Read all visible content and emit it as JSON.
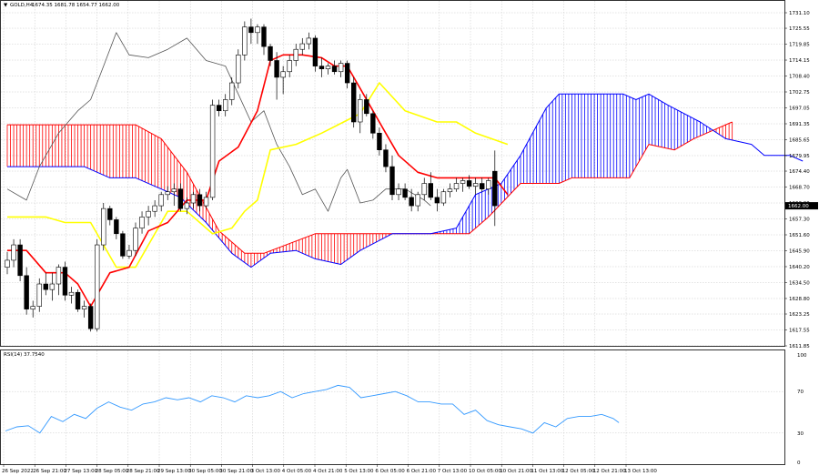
{
  "header": {
    "symbol_label": "GOLD,H4",
    "ohlc_label": "1674.35 1681.78 1654.77 1662.00",
    "rsi_label": "RSI(14) 37.7540"
  },
  "price_axis": {
    "ticks": [
      "1731.10",
      "1725.55",
      "1719.85",
      "1714.15",
      "1708.40",
      "1702.75",
      "1697.05",
      "1691.35",
      "1685.65",
      "1679.95",
      "1674.40",
      "1668.70",
      "1663.00",
      "1657.30",
      "1651.60",
      "1645.90",
      "1640.20",
      "1634.50",
      "1628.80",
      "1623.25",
      "1617.55",
      "1611.85"
    ],
    "current_price": "1662.00"
  },
  "rsi_axis": {
    "ticks": [
      "100",
      "70",
      "30",
      "0"
    ]
  },
  "time_axis": {
    "labels": [
      "26 Sep 2022",
      "26 Sep 21:00",
      "27 Sep 13:00",
      "28 Sep 05:00",
      "28 Sep 21:00",
      "29 Sep 13:00",
      "30 Sep 05:00",
      "30 Sep 21:00",
      "3 Oct 13:00",
      "4 Oct 05:00",
      "4 Oct 21:00",
      "5 Oct 13:00",
      "6 Oct 05:00",
      "6 Oct 21:00",
      "7 Oct 13:00",
      "10 Oct 05:00",
      "10 Oct 21:00",
      "11 Oct 13:00",
      "12 Oct 05:00",
      "12 Oct 21:00",
      "13 Oct 13:00"
    ]
  },
  "colors": {
    "bull": "#ffffff",
    "bear": "#000000",
    "tenkan": "#ff0000",
    "kijun": "#ffff00",
    "chikou": "#555555",
    "span_a": "#ff0000",
    "span_b": "#0000ff",
    "rsi": "#3399ff",
    "grid": "#c8c8c8"
  },
  "chart_data": [
    {
      "type": "candlestick",
      "indicator": "ichimoku",
      "ylim": [
        1611.85,
        1731.1
      ],
      "candles": [
        [
          1640.0,
          1645.5,
          1637.5,
          1642.5
        ],
        [
          1642.5,
          1650.0,
          1640.0,
          1648.0
        ],
        [
          1648.0,
          1650.0,
          1635.0,
          1637.0
        ],
        [
          1637.0,
          1640.0,
          1623.0,
          1625.0
        ],
        [
          1625.0,
          1628.0,
          1622.0,
          1626.0
        ],
        [
          1626.0,
          1636.0,
          1624.0,
          1634.0
        ],
        [
          1634.0,
          1638.0,
          1630.0,
          1632.0
        ],
        [
          1632.0,
          1638.0,
          1628.0,
          1634.0
        ],
        [
          1634.0,
          1641.0,
          1630.0,
          1640.0
        ],
        [
          1640.0,
          1642.0,
          1628.0,
          1630.0
        ],
        [
          1630.0,
          1633.0,
          1627.0,
          1631.0
        ],
        [
          1631.0,
          1632.0,
          1624.0,
          1625.0
        ],
        [
          1625.0,
          1628.0,
          1622.0,
          1626.0
        ],
        [
          1626.0,
          1627.0,
          1617.0,
          1618.0
        ],
        [
          1618.0,
          1650.0,
          1617.0,
          1648.0
        ],
        [
          1648.0,
          1663.0,
          1646.0,
          1661.0
        ],
        [
          1661.0,
          1662.0,
          1655.0,
          1657.0
        ],
        [
          1657.0,
          1658.0,
          1650.0,
          1652.0
        ],
        [
          1652.0,
          1653.0,
          1643.0,
          1644.0
        ],
        [
          1644.0,
          1648.0,
          1643.0,
          1646.0
        ],
        [
          1646.0,
          1656.0,
          1644.0,
          1654.0
        ],
        [
          1654.0,
          1660.0,
          1652.0,
          1658.0
        ],
        [
          1658.0,
          1662.0,
          1655.0,
          1660.0
        ],
        [
          1660.0,
          1664.0,
          1658.0,
          1662.0
        ],
        [
          1662.0,
          1667.0,
          1660.0,
          1666.0
        ],
        [
          1666.0,
          1669.0,
          1664.0,
          1667.0
        ],
        [
          1667.0,
          1670.0,
          1662.0,
          1668.0
        ],
        [
          1668.0,
          1670.0,
          1660.0,
          1661.0
        ],
        [
          1661.0,
          1665.0,
          1659.0,
          1663.0
        ],
        [
          1663.0,
          1667.0,
          1661.0,
          1666.0
        ],
        [
          1666.0,
          1668.0,
          1660.0,
          1662.0
        ],
        [
          1662.0,
          1667.0,
          1661.0,
          1665.0
        ],
        [
          1665.0,
          1700.0,
          1664.0,
          1698.0
        ],
        [
          1698.0,
          1700.0,
          1694.0,
          1696.0
        ],
        [
          1696.0,
          1702.0,
          1694.0,
          1700.0
        ],
        [
          1700.0,
          1708.0,
          1698.0,
          1706.0
        ],
        [
          1706.0,
          1718.0,
          1704.0,
          1716.0
        ],
        [
          1716.0,
          1728.0,
          1714.0,
          1726.0
        ],
        [
          1726.0,
          1729.0,
          1720.0,
          1724.0
        ],
        [
          1724.0,
          1727.0,
          1720.0,
          1726.0
        ],
        [
          1726.0,
          1727.0,
          1716.0,
          1719.0
        ],
        [
          1719.0,
          1720.0,
          1712.0,
          1714.0
        ],
        [
          1714.0,
          1717.0,
          1700.0,
          1708.0
        ],
        [
          1708.0,
          1712.0,
          1702.0,
          1710.0
        ],
        [
          1710.0,
          1716.0,
          1708.0,
          1714.0
        ],
        [
          1714.0,
          1720.0,
          1712.0,
          1718.0
        ],
        [
          1718.0,
          1722.0,
          1716.0,
          1720.0
        ],
        [
          1720.0,
          1724.0,
          1718.0,
          1722.0
        ],
        [
          1722.0,
          1723.0,
          1710.0,
          1712.0
        ],
        [
          1712.0,
          1715.0,
          1708.0,
          1711.0
        ],
        [
          1711.0,
          1713.0,
          1709.0,
          1712.0
        ],
        [
          1712.0,
          1714.0,
          1709.0,
          1710.0
        ],
        [
          1710.0,
          1714.0,
          1708.0,
          1713.0
        ],
        [
          1713.0,
          1714.0,
          1704.0,
          1706.0
        ],
        [
          1706.0,
          1708.0,
          1690.0,
          1692.0
        ],
        [
          1692.0,
          1702.0,
          1688.0,
          1700.0
        ],
        [
          1700.0,
          1702.0,
          1694.0,
          1695.0
        ],
        [
          1695.0,
          1696.0,
          1686.0,
          1688.0
        ],
        [
          1688.0,
          1690.0,
          1680.0,
          1682.0
        ],
        [
          1682.0,
          1684.0,
          1674.0,
          1676.0
        ],
        [
          1676.0,
          1680.0,
          1664.0,
          1666.0
        ],
        [
          1666.0,
          1670.0,
          1664.0,
          1668.0
        ],
        [
          1668.0,
          1670.0,
          1664.0,
          1665.0
        ],
        [
          1665.0,
          1668.0,
          1660.0,
          1662.0
        ],
        [
          1662.0,
          1667.0,
          1660.0,
          1666.0
        ],
        [
          1666.0,
          1672.0,
          1664.0,
          1670.0
        ],
        [
          1670.0,
          1674.0,
          1664.0,
          1665.0
        ],
        [
          1665.0,
          1668.0,
          1660.0,
          1663.0
        ],
        [
          1663.0,
          1668.0,
          1662.0,
          1667.0
        ],
        [
          1667.0,
          1670.0,
          1665.0,
          1668.0
        ],
        [
          1668.0,
          1672.0,
          1667.0,
          1670.0
        ],
        [
          1670.0,
          1672.0,
          1667.0,
          1671.0
        ],
        [
          1671.0,
          1673.0,
          1668.0,
          1669.0
        ],
        [
          1669.0,
          1672.0,
          1666.0,
          1670.0
        ],
        [
          1670.0,
          1672.0,
          1667.0,
          1668.0
        ],
        [
          1668.0,
          1672.0,
          1666.0,
          1671.0
        ],
        [
          1674.35,
          1681.78,
          1654.77,
          1662.0
        ]
      ],
      "tenkan_sen": [
        [
          0,
          1646
        ],
        [
          3,
          1646
        ],
        [
          6,
          1638
        ],
        [
          9,
          1638
        ],
        [
          11,
          1634
        ],
        [
          13,
          1626
        ],
        [
          16,
          1638
        ],
        [
          19,
          1640
        ],
        [
          22,
          1653
        ],
        [
          25,
          1656
        ],
        [
          28,
          1664
        ],
        [
          31,
          1664
        ],
        [
          33,
          1678
        ],
        [
          36,
          1683
        ],
        [
          39,
          1696
        ],
        [
          41,
          1714
        ],
        [
          43,
          1716
        ],
        [
          46,
          1716
        ],
        [
          49,
          1715
        ],
        [
          51,
          1712
        ],
        [
          53,
          1712
        ],
        [
          55,
          1704
        ],
        [
          57,
          1696
        ],
        [
          59,
          1688
        ],
        [
          61,
          1680
        ],
        [
          64,
          1674
        ],
        [
          67,
          1672
        ],
        [
          70,
          1672
        ],
        [
          73,
          1672
        ],
        [
          76,
          1672
        ],
        [
          78,
          1666
        ]
      ],
      "kijun_sen": [
        [
          0,
          1658
        ],
        [
          6,
          1658
        ],
        [
          9,
          1656
        ],
        [
          13,
          1656
        ],
        [
          17,
          1640
        ],
        [
          20,
          1640
        ],
        [
          25,
          1660
        ],
        [
          28,
          1660
        ],
        [
          32,
          1652
        ],
        [
          35,
          1654
        ],
        [
          37,
          1660
        ],
        [
          39,
          1664
        ],
        [
          41,
          1682
        ],
        [
          45,
          1684
        ],
        [
          49,
          1688
        ],
        [
          55,
          1695
        ],
        [
          58,
          1706
        ],
        [
          62,
          1696
        ],
        [
          67,
          1692
        ],
        [
          70,
          1692
        ],
        [
          73,
          1688
        ],
        [
          78,
          1684
        ]
      ],
      "chikou_span": [
        [
          0,
          1668
        ],
        [
          3,
          1664
        ],
        [
          5,
          1676
        ],
        [
          8,
          1688
        ],
        [
          11,
          1696
        ],
        [
          13,
          1700
        ],
        [
          15,
          1712
        ],
        [
          17,
          1724
        ],
        [
          19,
          1716
        ],
        [
          22,
          1715
        ],
        [
          25,
          1718
        ],
        [
          28,
          1722
        ],
        [
          31,
          1714
        ],
        [
          34,
          1712
        ],
        [
          36,
          1702
        ],
        [
          38,
          1692
        ],
        [
          40,
          1696
        ],
        [
          42,
          1684
        ],
        [
          44,
          1676
        ],
        [
          46,
          1666
        ],
        [
          48,
          1668
        ],
        [
          50,
          1660
        ],
        [
          52,
          1672
        ],
        [
          53,
          1675
        ],
        [
          55,
          1663
        ],
        [
          57,
          1664
        ],
        [
          59,
          1668
        ],
        [
          62,
          1668
        ],
        [
          65,
          1664
        ],
        [
          66,
          1662
        ]
      ],
      "senkou_span_a": [
        [
          0,
          1691
        ],
        [
          20,
          1691
        ],
        [
          24,
          1686
        ],
        [
          28,
          1674
        ],
        [
          33,
          1653
        ],
        [
          37,
          1645
        ],
        [
          40,
          1645
        ],
        [
          48,
          1652
        ],
        [
          72,
          1652
        ],
        [
          75,
          1658
        ],
        [
          80,
          1670
        ],
        [
          86,
          1670
        ],
        [
          88,
          1672
        ],
        [
          97,
          1672
        ],
        [
          100,
          1684
        ],
        [
          104,
          1682
        ],
        [
          107,
          1686
        ],
        [
          110,
          1689
        ],
        [
          113,
          1692
        ]
      ],
      "senkou_span_b": [
        [
          0,
          1676
        ],
        [
          12,
          1676
        ],
        [
          16,
          1672
        ],
        [
          20,
          1672
        ],
        [
          24,
          1668
        ],
        [
          27,
          1665
        ],
        [
          31,
          1656
        ],
        [
          35,
          1645
        ],
        [
          38,
          1640
        ],
        [
          41,
          1645
        ],
        [
          45,
          1646
        ],
        [
          48,
          1643
        ],
        [
          52,
          1641
        ],
        [
          55,
          1646
        ],
        [
          60,
          1652
        ],
        [
          66,
          1652
        ],
        [
          70,
          1654
        ],
        [
          73,
          1666
        ],
        [
          77,
          1670
        ],
        [
          80,
          1680
        ],
        [
          84,
          1697
        ],
        [
          86,
          1702
        ],
        [
          96,
          1702
        ],
        [
          98,
          1700
        ],
        [
          100,
          1702
        ],
        [
          103,
          1698
        ],
        [
          108,
          1692
        ],
        [
          112,
          1686
        ],
        [
          116,
          1684
        ],
        [
          118,
          1680
        ],
        [
          122,
          1680
        ],
        [
          124,
          1678
        ]
      ]
    },
    {
      "type": "line",
      "series": [
        {
          "name": "RSI(14)",
          "values": [
            [
              0,
              32
            ],
            [
              2,
              36
            ],
            [
              4,
              37
            ],
            [
              6,
              30
            ],
            [
              8,
              46
            ],
            [
              10,
              41
            ],
            [
              12,
              48
            ],
            [
              14,
              44
            ],
            [
              16,
              54
            ],
            [
              18,
              60
            ],
            [
              20,
              55
            ],
            [
              22,
              52
            ],
            [
              24,
              58
            ],
            [
              26,
              60
            ],
            [
              28,
              64
            ],
            [
              30,
              62
            ],
            [
              32,
              64
            ],
            [
              34,
              60
            ],
            [
              36,
              66
            ],
            [
              38,
              64
            ],
            [
              40,
              60
            ],
            [
              42,
              66
            ],
            [
              44,
              64
            ],
            [
              46,
              66
            ],
            [
              48,
              70
            ],
            [
              50,
              64
            ],
            [
              52,
              68
            ],
            [
              54,
              70
            ],
            [
              56,
              72
            ],
            [
              58,
              76
            ],
            [
              60,
              74
            ],
            [
              62,
              64
            ],
            [
              64,
              66
            ],
            [
              66,
              68
            ],
            [
              68,
              70
            ],
            [
              70,
              66
            ],
            [
              72,
              60
            ],
            [
              74,
              60
            ],
            [
              76,
              58
            ],
            [
              78,
              58
            ],
            [
              80,
              48
            ],
            [
              82,
              52
            ],
            [
              84,
              42
            ],
            [
              86,
              38
            ],
            [
              88,
              36
            ],
            [
              90,
              34
            ],
            [
              92,
              30
            ],
            [
              94,
              40
            ],
            [
              96,
              36
            ],
            [
              98,
              44
            ],
            [
              100,
              46
            ],
            [
              102,
              46
            ],
            [
              104,
              48
            ],
            [
              106,
              44
            ],
            [
              107,
              40
            ]
          ]
        }
      ],
      "ylim": [
        0,
        100
      ]
    }
  ]
}
